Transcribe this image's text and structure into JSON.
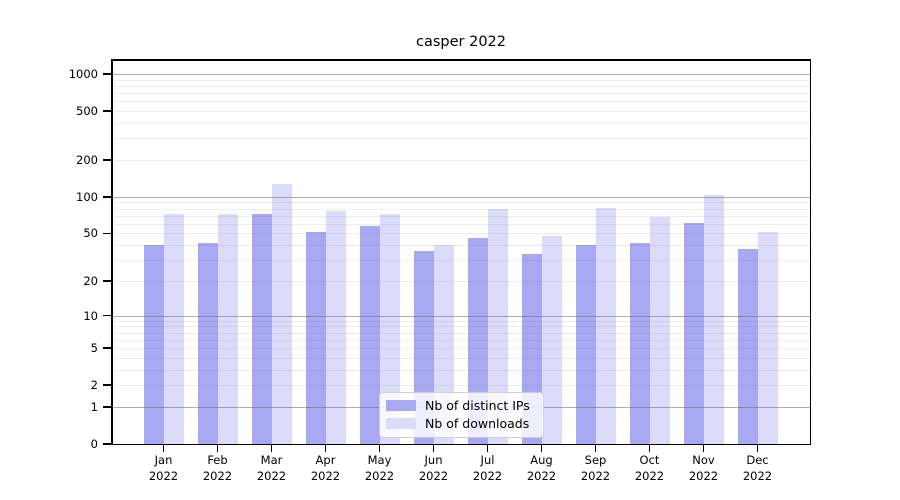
{
  "figure": {
    "title": "casper 2022",
    "background": "#ffffff"
  },
  "chart_data": {
    "type": "bar",
    "title": "casper 2022",
    "categories": [
      "Jan",
      "Feb",
      "Mar",
      "Apr",
      "May",
      "Jun",
      "Jul",
      "Aug",
      "Sep",
      "Oct",
      "Nov",
      "Dec"
    ],
    "x_year_label": "2022",
    "series": [
      {
        "name": "Nb of distinct IPs",
        "color": "#a9a9f3",
        "values": [
          40,
          42,
          72,
          51,
          58,
          36,
          46,
          34,
          40,
          42,
          61,
          37
        ]
      },
      {
        "name": "Nb of downloads",
        "color": "#dcdbfa",
        "values": [
          72,
          73,
          128,
          77,
          72,
          40,
          80,
          48,
          81,
          68,
          104,
          51
        ]
      }
    ],
    "xlabel": "",
    "ylabel": "",
    "yscale": "log1p",
    "ylim": [
      0,
      1300
    ],
    "yticks": [
      0,
      1,
      2,
      5,
      10,
      20,
      50,
      100,
      200,
      500,
      1000
    ],
    "grid_major": [
      1,
      10,
      100,
      1000
    ],
    "grid_minor": [
      2,
      3,
      4,
      5,
      6,
      7,
      8,
      9,
      20,
      30,
      40,
      50,
      60,
      70,
      80,
      90,
      200,
      300,
      400,
      500,
      600,
      700,
      800,
      900
    ],
    "legend": {
      "position": "lower-center",
      "entries": [
        "Nb of distinct IPs",
        "Nb of downloads"
      ]
    },
    "colors": {
      "bar_dark": "#a9a9f3",
      "bar_light": "#dcdbfa",
      "grid_major": "#b4b4b4",
      "grid_minor": "#ededed",
      "spine": "#000000"
    }
  }
}
